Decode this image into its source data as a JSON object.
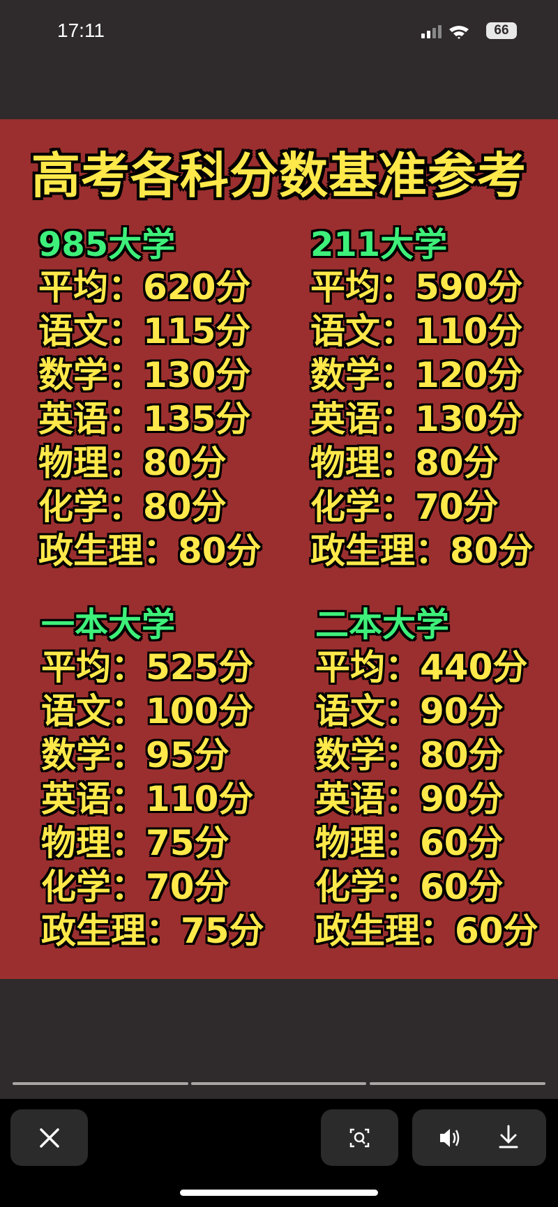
{
  "status_bar": {
    "time": "17:11",
    "battery": "66"
  },
  "poster": {
    "title": "高考各科分数基准参考",
    "blocks": [
      {
        "heading": "985大学",
        "rows": [
          "平均：620分",
          "语文：115分",
          "数学：130分",
          "英语：135分",
          "物理：80分",
          "化学：80分",
          "政生理：80分"
        ]
      },
      {
        "heading": "211大学",
        "rows": [
          "平均：590分",
          "语文：110分",
          "数学：120分",
          "英语：130分",
          "物理：80分",
          "化学：70分",
          "政生理：80分"
        ]
      },
      {
        "heading": "一本大学",
        "rows": [
          "平均：525分",
          "语文：100分",
          "数学：95分",
          "英语：110分",
          "物理：75分",
          "化学：70分",
          "政生理：75分"
        ]
      },
      {
        "heading": "二本大学",
        "rows": [
          "平均：440分",
          "语文：90分",
          "数学：80分",
          "英语：90分",
          "物理：60分",
          "化学：60分",
          "政生理：60分"
        ]
      }
    ]
  }
}
